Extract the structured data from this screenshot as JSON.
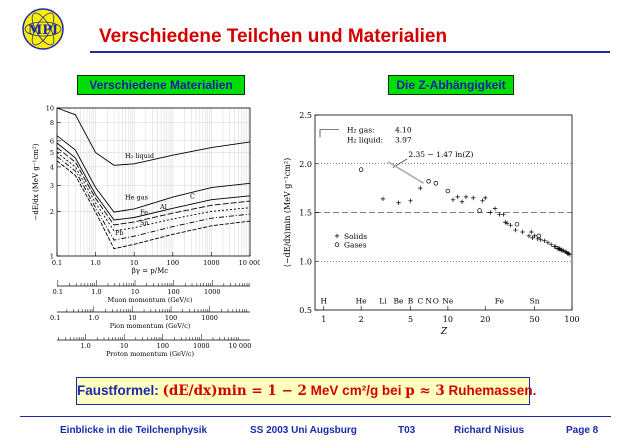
{
  "header": {
    "logo_text": "MPI",
    "title": "Verschiedene Teilchen und Materialien"
  },
  "left_panel": {
    "label": "Verschiedene Materialien"
  },
  "right_panel": {
    "label": "Die Z-Abhängigkeit"
  },
  "formula": {
    "prefix": "Faustformel:",
    "math": "(dE/dx)min = 1 − 2",
    "unit": "MeV cm²/g bei",
    "condition": "p ≈ 3",
    "suffix": "Ruhemassen."
  },
  "footer": {
    "course": "Einblicke in die Teilchenphysik",
    "term": "SS 2003 Uni Augsburg",
    "code": "T03",
    "author": "Richard Nisius",
    "page": "Page 8"
  },
  "colors": {
    "title": "#d40000",
    "accent": "#1a2aa8",
    "panel_label_bg": "#00dd00",
    "formula_bg": "#ffffc0"
  },
  "chart_data": [
    {
      "type": "line",
      "title": "",
      "xlabel": "βγ = p/Mc",
      "ylabel": "−dE/dx (MeV g⁻¹cm²)",
      "x_scale": "log",
      "y_scale": "log",
      "xlim": [
        0.1,
        10000
      ],
      "ylim": [
        1,
        10
      ],
      "x_ticks": [
        0.1,
        1.0,
        10,
        100,
        1000,
        10000
      ],
      "x_tick_labels": [
        "0.1",
        "1.0",
        "10",
        "100",
        "1000",
        "10 000"
      ],
      "y_ticks": [
        1,
        2,
        3,
        4,
        5,
        6,
        8,
        10
      ],
      "y_tick_labels": [
        "1",
        "2",
        "3",
        "4",
        "5",
        "6",
        "8",
        "10"
      ],
      "grid": true,
      "series": [
        {
          "name": "H₂ liquid",
          "x": [
            0.1,
            0.3,
            1,
            3,
            10,
            100,
            1000,
            10000
          ],
          "y": [
            10,
            9.0,
            5.0,
            4.1,
            4.2,
            4.8,
            5.4,
            5.9
          ]
        },
        {
          "name": "He gas",
          "x": [
            0.1,
            0.3,
            1,
            3,
            10,
            100,
            1000,
            10000
          ],
          "y": [
            6.5,
            5.2,
            2.9,
            1.98,
            2.08,
            2.5,
            2.9,
            3.1
          ]
        },
        {
          "name": "C",
          "x": [
            0.1,
            0.3,
            1,
            3,
            10,
            100,
            1000,
            10000
          ],
          "y": [
            5.8,
            4.6,
            2.6,
            1.75,
            1.82,
            2.1,
            2.4,
            2.55
          ]
        },
        {
          "name": "Al",
          "x": [
            0.1,
            0.3,
            1,
            3,
            10,
            100,
            1000,
            10000
          ],
          "y": [
            5.4,
            4.3,
            2.45,
            1.62,
            1.7,
            1.95,
            2.2,
            2.35
          ]
        },
        {
          "name": "Fe",
          "x": [
            0.1,
            0.3,
            1,
            3,
            10,
            100,
            1000,
            10000
          ],
          "y": [
            5.0,
            4.0,
            2.28,
            1.48,
            1.55,
            1.78,
            2.0,
            2.12
          ]
        },
        {
          "name": "Sn",
          "x": [
            0.1,
            0.3,
            1,
            3,
            10,
            100,
            1000,
            10000
          ],
          "y": [
            4.7,
            3.75,
            2.12,
            1.28,
            1.36,
            1.58,
            1.8,
            1.92
          ]
        },
        {
          "name": "Pb",
          "x": [
            0.1,
            0.3,
            1,
            3,
            10,
            100,
            1000,
            10000
          ],
          "y": [
            4.4,
            3.5,
            1.98,
            1.12,
            1.2,
            1.4,
            1.6,
            1.72
          ]
        }
      ],
      "secondary_axes": [
        {
          "label": "Muon momentum (GeV/c)",
          "tick_labels": [
            "0.1",
            "1.0",
            "10",
            "100",
            "1000"
          ],
          "values": [
            0.1,
            1.0,
            10,
            100,
            1000
          ]
        },
        {
          "label": "Pion momentum (GeV/c)",
          "tick_labels": [
            "0.1",
            "1.0",
            "10",
            "100",
            "1000"
          ],
          "values": [
            0.1,
            1.0,
            10,
            100,
            1000
          ]
        },
        {
          "label": "Proton momentum (GeV/c)",
          "tick_labels": [
            "0.1",
            "1.0",
            "10",
            "100",
            "1000",
            "10 000"
          ],
          "values": [
            0.1,
            1.0,
            10,
            100,
            1000,
            10000
          ]
        }
      ]
    },
    {
      "type": "scatter",
      "title": "",
      "xlabel": "Z",
      "ylabel": "⟨−dE/dx⟩min (MeV g⁻¹cm²)",
      "x_scale": "log",
      "xlim": [
        0.85,
        100
      ],
      "ylim": [
        0.5,
        2.5
      ],
      "x_ticks": [
        1,
        2,
        5,
        10,
        20,
        50,
        100
      ],
      "x_tick_labels": [
        "1",
        "2",
        "5",
        "10",
        "20",
        "50",
        "100"
      ],
      "y_ticks": [
        0.5,
        1.0,
        1.5,
        2.0,
        2.5
      ],
      "y_tick_labels": [
        "0.5",
        "1.0",
        "1.5",
        "2.0",
        "2.5"
      ],
      "reference_lines": [
        {
          "style": "dotted",
          "y": 2.0
        },
        {
          "style": "dashed",
          "y": 1.5
        },
        {
          "style": "dotted",
          "y": 1.0
        }
      ],
      "element_labels": [
        {
          "text": "H",
          "z": 1
        },
        {
          "text": "He",
          "z": 2
        },
        {
          "text": "Li",
          "z": 3
        },
        {
          "text": "Be",
          "z": 4
        },
        {
          "text": "B",
          "z": 5
        },
        {
          "text": "C",
          "z": 6
        },
        {
          "text": "N",
          "z": 7
        },
        {
          "text": "O",
          "z": 8
        },
        {
          "text": "Ne",
          "z": 10
        },
        {
          "text": "Fe",
          "z": 26
        },
        {
          "text": "Sn",
          "z": 50
        }
      ],
      "annotations": {
        "h2_gas_label": "H₂ gas:",
        "h2_gas_value": "4.10",
        "h2_liquid_label": "H₂ liquid:",
        "h2_liquid_value": "3.97",
        "fit": "2.35 − 1.47 ln(Z)"
      },
      "fit_line": {
        "x": [
          6,
          8.5
        ],
        "y": [
          2.0,
          1.8
        ]
      },
      "legend": [
        "Solids",
        "Gases"
      ],
      "legend_position": "bottom-left",
      "series": [
        {
          "name": "Solids",
          "marker": "plus",
          "x": [
            3,
            4,
            5,
            6,
            11,
            12,
            13,
            14,
            16,
            19,
            20,
            22,
            24,
            26,
            28,
            29,
            30,
            32,
            35,
            40,
            45,
            47,
            48,
            50,
            53,
            56,
            60,
            64,
            68,
            72,
            74,
            76,
            78,
            79,
            80,
            82,
            83,
            85,
            88,
            90,
            92,
            94,
            96
          ],
          "y": [
            1.64,
            1.6,
            1.62,
            1.75,
            1.63,
            1.66,
            1.61,
            1.66,
            1.65,
            1.62,
            1.65,
            1.5,
            1.54,
            1.48,
            1.48,
            1.4,
            1.39,
            1.37,
            1.32,
            1.3,
            1.26,
            1.3,
            1.24,
            1.26,
            1.23,
            1.22,
            1.21,
            1.19,
            1.17,
            1.15,
            1.15,
            1.13,
            1.13,
            1.13,
            1.12,
            1.12,
            1.11,
            1.11,
            1.1,
            1.09,
            1.08,
            1.08,
            1.07
          ]
        },
        {
          "name": "Gases",
          "marker": "circle",
          "x": [
            2,
            7,
            8,
            10,
            18,
            36,
            54
          ],
          "y": [
            1.94,
            1.82,
            1.8,
            1.72,
            1.52,
            1.38,
            1.26
          ]
        }
      ]
    }
  ]
}
